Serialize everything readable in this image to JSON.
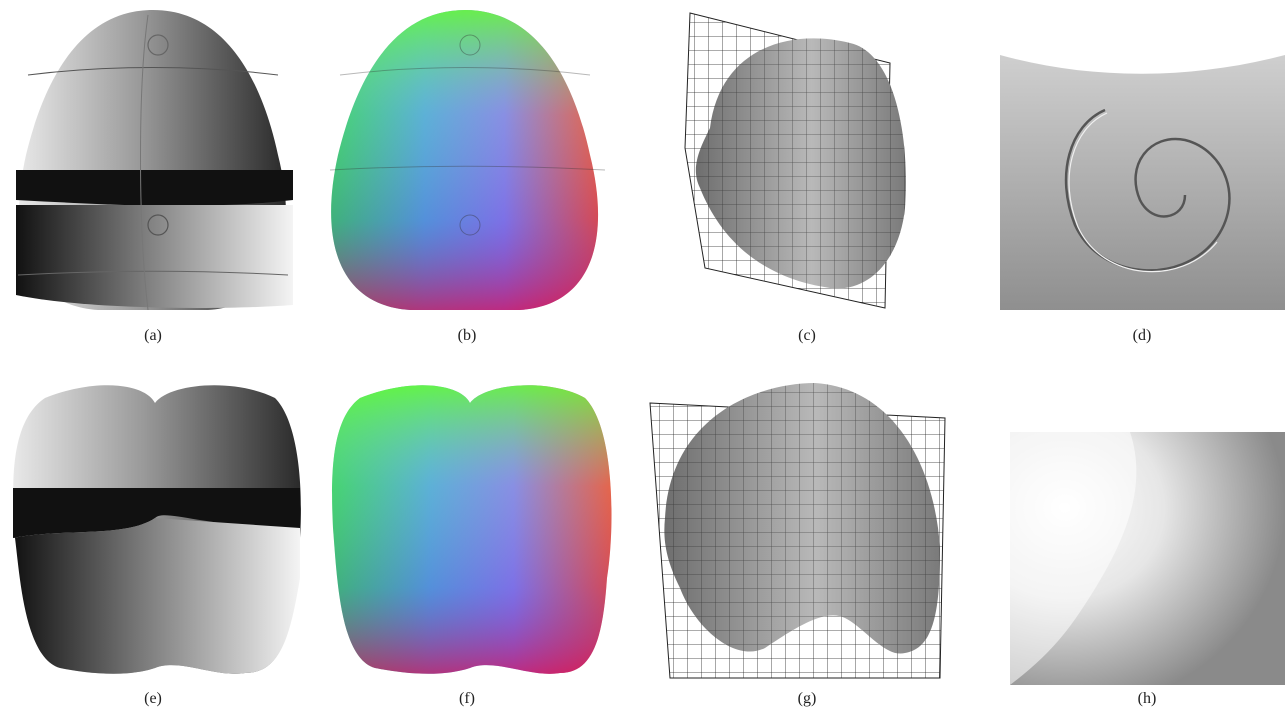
{
  "figure": {
    "panels": [
      {
        "id": "a",
        "label": "(a)",
        "content": "grayscale shaded object with stripe"
      },
      {
        "id": "b",
        "label": "(b)",
        "content": "normal map colored object"
      },
      {
        "id": "c",
        "label": "(c)",
        "content": "3D mesh reconstruction"
      },
      {
        "id": "d",
        "label": "(d)",
        "content": "zoomed spiral detail"
      },
      {
        "id": "e",
        "label": "(e)",
        "content": "grayscale shaded apple"
      },
      {
        "id": "f",
        "label": "(f)",
        "content": "normal map colored apple"
      },
      {
        "id": "g",
        "label": "(g)",
        "content": "3D mesh reconstruction"
      },
      {
        "id": "h",
        "label": "(h)",
        "content": "zoomed surface texture"
      }
    ],
    "colors": {
      "normal_green": "#3de23a",
      "normal_blue": "#3b4fe0",
      "normal_red": "#ff3d1a",
      "normal_magenta": "#d23ae0",
      "mesh_gray": "#8a8a8a"
    }
  }
}
